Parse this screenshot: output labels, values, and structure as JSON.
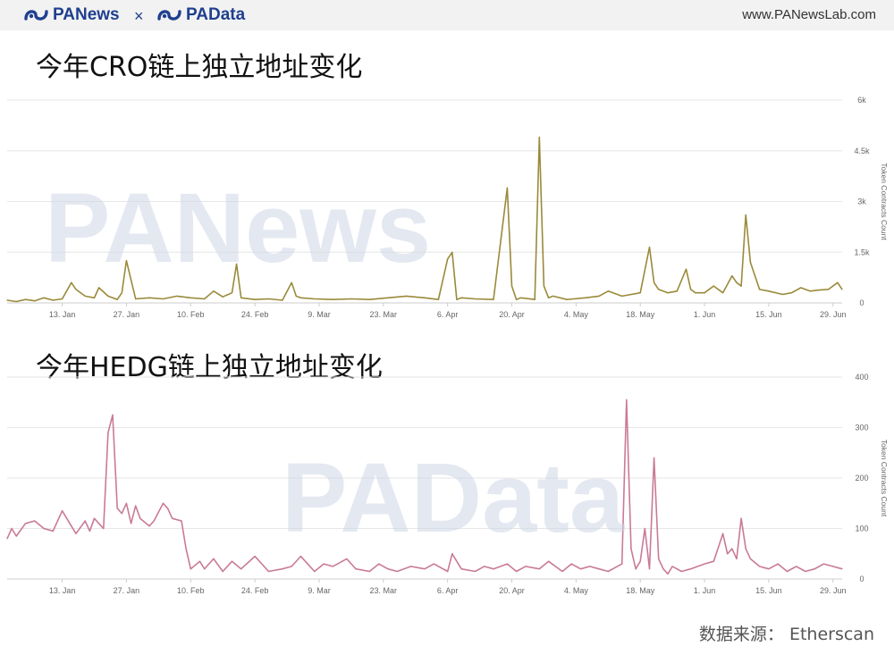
{
  "header": {
    "logo_left": "PANews",
    "separator": "×",
    "logo_right": "PAData",
    "url": "www.PANewsLab.com"
  },
  "source": "数据来源：  Etherscan",
  "colors": {
    "cro_line": "#9a8a3a",
    "hedg_line": "#c97a98",
    "brand": "#1f3f8f"
  },
  "chart_data": [
    {
      "type": "line",
      "title": "今年CRO链上独立地址变化",
      "ylabel": "Token Contracts Count",
      "ylim": [
        0,
        6000
      ],
      "yticks": [
        0,
        1500,
        3000,
        4500,
        6000
      ],
      "ytick_labels": [
        "0",
        "1.5k",
        "3k",
        "4.5k",
        "6k"
      ],
      "x_range": [
        "2020-01-01",
        "2020-07-01"
      ],
      "x_tick_dates": [
        "2020-01-13",
        "2020-01-27",
        "2020-02-10",
        "2020-02-24",
        "2020-03-09",
        "2020-03-23",
        "2020-04-06",
        "2020-04-20",
        "2020-05-04",
        "2020-05-18",
        "2020-06-01",
        "2020-06-15",
        "2020-06-29"
      ],
      "x_tick_labels": [
        "13. Jan",
        "27. Jan",
        "10. Feb",
        "24. Feb",
        "9. Mar",
        "23. Mar",
        "6. Apr",
        "20. Apr",
        "4. May",
        "18. May",
        "1. Jun",
        "15. Jun",
        "29. Jun"
      ],
      "grid": true,
      "legend": "none",
      "series": [
        {
          "x": [
            "2020-01-01",
            "2020-01-03",
            "2020-01-05",
            "2020-01-07",
            "2020-01-09",
            "2020-01-11",
            "2020-01-13",
            "2020-01-15",
            "2020-01-16",
            "2020-01-18",
            "2020-01-20",
            "2020-01-21",
            "2020-01-23",
            "2020-01-25",
            "2020-01-26",
            "2020-01-27",
            "2020-01-29",
            "2020-02-01",
            "2020-02-04",
            "2020-02-07",
            "2020-02-10",
            "2020-02-13",
            "2020-02-15",
            "2020-02-17",
            "2020-02-19",
            "2020-02-20",
            "2020-02-21",
            "2020-02-24",
            "2020-02-27",
            "2020-03-01",
            "2020-03-03",
            "2020-03-04",
            "2020-03-05",
            "2020-03-08",
            "2020-03-12",
            "2020-03-16",
            "2020-03-20",
            "2020-03-24",
            "2020-03-28",
            "2020-04-01",
            "2020-04-04",
            "2020-04-06",
            "2020-04-07",
            "2020-04-08",
            "2020-04-09",
            "2020-04-12",
            "2020-04-16",
            "2020-04-19",
            "2020-04-20",
            "2020-04-21",
            "2020-04-22",
            "2020-04-25",
            "2020-04-26",
            "2020-04-27",
            "2020-04-28",
            "2020-04-29",
            "2020-05-02",
            "2020-05-06",
            "2020-05-09",
            "2020-05-11",
            "2020-05-14",
            "2020-05-18",
            "2020-05-20",
            "2020-05-21",
            "2020-05-22",
            "2020-05-24",
            "2020-05-26",
            "2020-05-28",
            "2020-05-29",
            "2020-05-30",
            "2020-06-01",
            "2020-06-03",
            "2020-06-05",
            "2020-06-07",
            "2020-06-08",
            "2020-06-09",
            "2020-06-10",
            "2020-06-11",
            "2020-06-13",
            "2020-06-15",
            "2020-06-18",
            "2020-06-20",
            "2020-06-22",
            "2020-06-24",
            "2020-06-26",
            "2020-06-28",
            "2020-06-30",
            "2020-07-01"
          ],
          "y": [
            80,
            40,
            100,
            60,
            150,
            80,
            120,
            600,
            400,
            200,
            150,
            450,
            200,
            100,
            300,
            1250,
            120,
            150,
            120,
            200,
            150,
            120,
            350,
            180,
            300,
            1150,
            150,
            100,
            120,
            80,
            600,
            200,
            150,
            120,
            100,
            120,
            100,
            150,
            200,
            150,
            100,
            1300,
            1500,
            100,
            150,
            120,
            100,
            3400,
            500,
            100,
            150,
            100,
            4900,
            500,
            150,
            200,
            100,
            150,
            200,
            350,
            200,
            300,
            1650,
            600,
            400,
            300,
            350,
            1000,
            400,
            300,
            300,
            500,
            300,
            800,
            600,
            500,
            2600,
            1200,
            400,
            350,
            250,
            300,
            450,
            350,
            380,
            400,
            600,
            400
          ]
        }
      ]
    },
    {
      "type": "line",
      "title": "今年HEDG链上独立地址变化",
      "ylabel": "Token Contracts Count",
      "ylim": [
        0,
        400
      ],
      "yticks": [
        0,
        100,
        200,
        300,
        400
      ],
      "ytick_labels": [
        "0",
        "100",
        "200",
        "300",
        "400"
      ],
      "x_range": [
        "2020-01-01",
        "2020-07-01"
      ],
      "x_tick_dates": [
        "2020-01-13",
        "2020-01-27",
        "2020-02-10",
        "2020-02-24",
        "2020-03-09",
        "2020-03-23",
        "2020-04-06",
        "2020-04-20",
        "2020-05-04",
        "2020-05-18",
        "2020-06-01",
        "2020-06-15",
        "2020-06-29"
      ],
      "x_tick_labels": [
        "13. Jan",
        "27. Jan",
        "10. Feb",
        "24. Feb",
        "9. Mar",
        "23. Mar",
        "6. Apr",
        "20. Apr",
        "4. May",
        "18. May",
        "1. Jun",
        "15. Jun",
        "29. Jun"
      ],
      "grid": true,
      "legend": "none",
      "series": [
        {
          "x": [
            "2020-01-01",
            "2020-01-02",
            "2020-01-03",
            "2020-01-05",
            "2020-01-07",
            "2020-01-09",
            "2020-01-11",
            "2020-01-13",
            "2020-01-15",
            "2020-01-16",
            "2020-01-18",
            "2020-01-19",
            "2020-01-20",
            "2020-01-21",
            "2020-01-22",
            "2020-01-23",
            "2020-01-24",
            "2020-01-25",
            "2020-01-26",
            "2020-01-27",
            "2020-01-28",
            "2020-01-29",
            "2020-01-30",
            "2020-02-01",
            "2020-02-02",
            "2020-02-04",
            "2020-02-05",
            "2020-02-06",
            "2020-02-08",
            "2020-02-09",
            "2020-02-10",
            "2020-02-12",
            "2020-02-13",
            "2020-02-15",
            "2020-02-17",
            "2020-02-19",
            "2020-02-21",
            "2020-02-24",
            "2020-02-27",
            "2020-03-01",
            "2020-03-03",
            "2020-03-05",
            "2020-03-08",
            "2020-03-10",
            "2020-03-12",
            "2020-03-15",
            "2020-03-17",
            "2020-03-20",
            "2020-03-22",
            "2020-03-24",
            "2020-03-26",
            "2020-03-29",
            "2020-04-01",
            "2020-04-03",
            "2020-04-06",
            "2020-04-07",
            "2020-04-09",
            "2020-04-12",
            "2020-04-14",
            "2020-04-16",
            "2020-04-19",
            "2020-04-21",
            "2020-04-23",
            "2020-04-26",
            "2020-04-28",
            "2020-05-01",
            "2020-05-03",
            "2020-05-05",
            "2020-05-07",
            "2020-05-09",
            "2020-05-11",
            "2020-05-13",
            "2020-05-14",
            "2020-05-15",
            "2020-05-16",
            "2020-05-17",
            "2020-05-18",
            "2020-05-19",
            "2020-05-20",
            "2020-05-21",
            "2020-05-22",
            "2020-05-23",
            "2020-05-24",
            "2020-05-25",
            "2020-05-27",
            "2020-05-29",
            "2020-06-01",
            "2020-06-03",
            "2020-06-05",
            "2020-06-06",
            "2020-06-07",
            "2020-06-08",
            "2020-06-09",
            "2020-06-10",
            "2020-06-11",
            "2020-06-13",
            "2020-06-15",
            "2020-06-17",
            "2020-06-19",
            "2020-06-21",
            "2020-06-23",
            "2020-06-25",
            "2020-06-27",
            "2020-06-29",
            "2020-07-01"
          ],
          "y": [
            80,
            100,
            85,
            110,
            115,
            100,
            95,
            135,
            105,
            90,
            115,
            95,
            120,
            110,
            100,
            290,
            325,
            140,
            130,
            150,
            110,
            145,
            120,
            105,
            115,
            150,
            140,
            120,
            115,
            60,
            20,
            35,
            20,
            40,
            15,
            35,
            20,
            45,
            15,
            20,
            25,
            45,
            15,
            30,
            25,
            40,
            20,
            15,
            30,
            20,
            15,
            25,
            20,
            30,
            15,
            50,
            20,
            15,
            25,
            20,
            30,
            15,
            25,
            20,
            35,
            15,
            30,
            20,
            25,
            20,
            15,
            25,
            30,
            355,
            60,
            20,
            35,
            100,
            20,
            240,
            40,
            20,
            10,
            25,
            15,
            20,
            30,
            35,
            90,
            50,
            60,
            40,
            120,
            60,
            40,
            25,
            20,
            30,
            15,
            25,
            15,
            20,
            30,
            25,
            20
          ]
        }
      ]
    }
  ]
}
